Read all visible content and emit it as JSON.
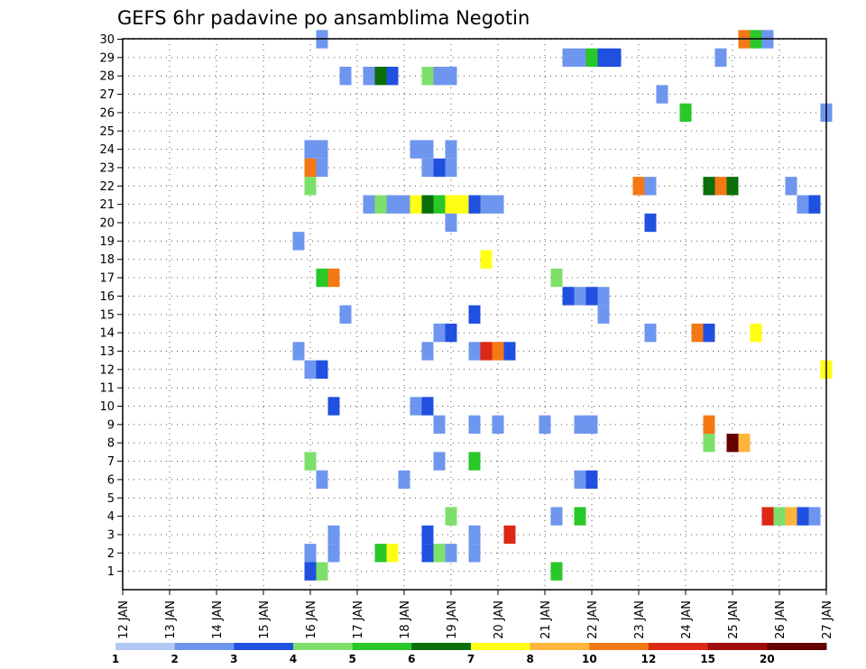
{
  "chart_data": {
    "type": "heatmap",
    "title": "GEFS 6hr padavine po ansamblima Negotin",
    "x_labels": [
      "12 JAN",
      "13 JAN",
      "14 JAN",
      "15 JAN",
      "16 JAN",
      "17 JAN",
      "18 JAN",
      "19 JAN",
      "20 JAN",
      "21 JAN",
      "22 JAN",
      "23 JAN",
      "24 JAN",
      "25 JAN",
      "26 JAN",
      "27 JAN"
    ],
    "y_labels": [
      "1",
      "2",
      "3",
      "4",
      "5",
      "6",
      "7",
      "8",
      "9",
      "10",
      "11",
      "12",
      "13",
      "14",
      "15",
      "16",
      "17",
      "18",
      "19",
      "20",
      "21",
      "22",
      "23",
      "24",
      "25",
      "26",
      "27",
      "28",
      "29",
      "30"
    ],
    "grid": true,
    "colorbar": {
      "labels": [
        "1",
        "2",
        "3",
        "4",
        "5",
        "6",
        "7",
        "8",
        "10",
        "12",
        "15",
        "20"
      ],
      "colors": [
        "#b4c8f5",
        "#6e96ee",
        "#1f50e0",
        "#7ee06a",
        "#28c828",
        "#0a6e0a",
        "#ffff14",
        "#ffb43c",
        "#f47814",
        "#dc2814",
        "#a00a0a",
        "#640000"
      ]
    },
    "cells": [
      [
        16.25,
        30,
        1
      ],
      [
        24.75,
        29,
        1
      ],
      [
        25.25,
        30,
        8
      ],
      [
        25.5,
        30,
        4
      ],
      [
        25.75,
        30,
        1
      ],
      [
        21.5,
        29,
        1
      ],
      [
        21.75,
        29,
        1
      ],
      [
        22,
        29,
        4
      ],
      [
        22.25,
        29,
        2
      ],
      [
        22.5,
        29,
        2
      ],
      [
        16.75,
        28,
        1
      ],
      [
        17.25,
        28,
        1
      ],
      [
        17.5,
        28,
        5
      ],
      [
        17.75,
        28,
        2
      ],
      [
        18.5,
        28,
        3
      ],
      [
        18.75,
        28,
        1
      ],
      [
        19,
        28,
        1
      ],
      [
        23.5,
        27,
        1
      ],
      [
        24,
        26,
        4
      ],
      [
        27,
        26,
        1
      ],
      [
        16,
        24,
        1
      ],
      [
        16.25,
        24,
        1
      ],
      [
        18.25,
        24,
        1
      ],
      [
        18.5,
        24,
        1
      ],
      [
        19,
        24,
        1
      ],
      [
        16,
        23,
        8
      ],
      [
        16.25,
        23,
        1
      ],
      [
        18.5,
        23,
        1
      ],
      [
        18.75,
        23,
        2
      ],
      [
        19,
        23,
        1
      ],
      [
        16,
        22,
        3
      ],
      [
        23,
        22,
        8
      ],
      [
        23.25,
        22,
        1
      ],
      [
        24.5,
        22,
        5
      ],
      [
        24.75,
        22,
        8
      ],
      [
        25,
        22,
        5
      ],
      [
        26.25,
        22,
        1
      ],
      [
        17.25,
        21,
        1
      ],
      [
        17.5,
        21,
        3
      ],
      [
        17.75,
        21,
        1
      ],
      [
        18,
        21,
        1
      ],
      [
        18.25,
        21,
        6
      ],
      [
        18.5,
        21,
        5
      ],
      [
        18.75,
        21,
        4
      ],
      [
        19,
        21,
        6
      ],
      [
        19.25,
        21,
        6
      ],
      [
        19.5,
        21,
        2
      ],
      [
        19.75,
        21,
        1
      ],
      [
        20,
        21,
        1
      ],
      [
        26.5,
        21,
        1
      ],
      [
        26.75,
        21,
        2
      ],
      [
        19,
        20,
        1
      ],
      [
        23.25,
        20,
        2
      ],
      [
        15.75,
        19,
        1
      ],
      [
        19.75,
        18,
        6
      ],
      [
        16.25,
        17,
        4
      ],
      [
        16.5,
        17,
        8
      ],
      [
        21.25,
        17,
        3
      ],
      [
        21.5,
        16,
        2
      ],
      [
        21.75,
        16,
        1
      ],
      [
        22,
        16,
        2
      ],
      [
        22.25,
        16,
        1
      ],
      [
        22.25,
        15,
        1
      ],
      [
        16.75,
        15,
        1
      ],
      [
        19.5,
        15,
        2
      ],
      [
        18.75,
        14,
        1
      ],
      [
        19,
        14,
        2
      ],
      [
        23.25,
        14,
        1
      ],
      [
        24.25,
        14,
        8
      ],
      [
        24.5,
        14,
        2
      ],
      [
        25.5,
        14,
        6
      ],
      [
        15.75,
        13,
        1
      ],
      [
        18.5,
        13,
        1
      ],
      [
        19.5,
        13,
        1
      ],
      [
        19.75,
        13,
        9
      ],
      [
        20,
        13,
        8
      ],
      [
        20.25,
        13,
        2
      ],
      [
        16,
        12,
        1
      ],
      [
        16.25,
        12,
        2
      ],
      [
        27,
        12,
        6
      ],
      [
        16.5,
        10,
        2
      ],
      [
        18.25,
        10,
        1
      ],
      [
        18.5,
        10,
        2
      ],
      [
        18.75,
        9,
        1
      ],
      [
        19.5,
        9,
        1
      ],
      [
        20,
        9,
        1
      ],
      [
        21,
        9,
        1
      ],
      [
        21.75,
        9,
        1
      ],
      [
        22,
        9,
        1
      ],
      [
        24.5,
        9,
        8
      ],
      [
        24.5,
        8,
        3
      ],
      [
        25,
        8,
        11
      ],
      [
        25.25,
        8,
        7
      ],
      [
        16,
        7,
        3
      ],
      [
        18.75,
        7,
        1
      ],
      [
        19.5,
        7,
        4
      ],
      [
        16.25,
        6,
        1
      ],
      [
        18,
        6,
        1
      ],
      [
        21.75,
        6,
        1
      ],
      [
        22,
        6,
        2
      ],
      [
        19,
        4,
        3
      ],
      [
        21.25,
        4,
        1
      ],
      [
        21.75,
        4,
        4
      ],
      [
        25.75,
        4,
        9
      ],
      [
        26,
        4,
        3
      ],
      [
        26.25,
        4,
        7
      ],
      [
        26.5,
        4,
        2
      ],
      [
        26.75,
        4,
        1
      ],
      [
        16.5,
        3,
        1
      ],
      [
        18.5,
        3,
        2
      ],
      [
        19.5,
        3,
        1
      ],
      [
        20.25,
        3,
        9
      ],
      [
        16,
        2,
        1
      ],
      [
        16.5,
        2,
        1
      ],
      [
        17.5,
        2,
        4
      ],
      [
        17.75,
        2,
        6
      ],
      [
        18.5,
        2,
        2
      ],
      [
        18.75,
        2,
        3
      ],
      [
        19,
        2,
        1
      ],
      [
        19.5,
        2,
        1
      ],
      [
        16,
        1,
        2
      ],
      [
        16.25,
        1,
        3
      ],
      [
        21.25,
        1,
        4
      ]
    ]
  }
}
